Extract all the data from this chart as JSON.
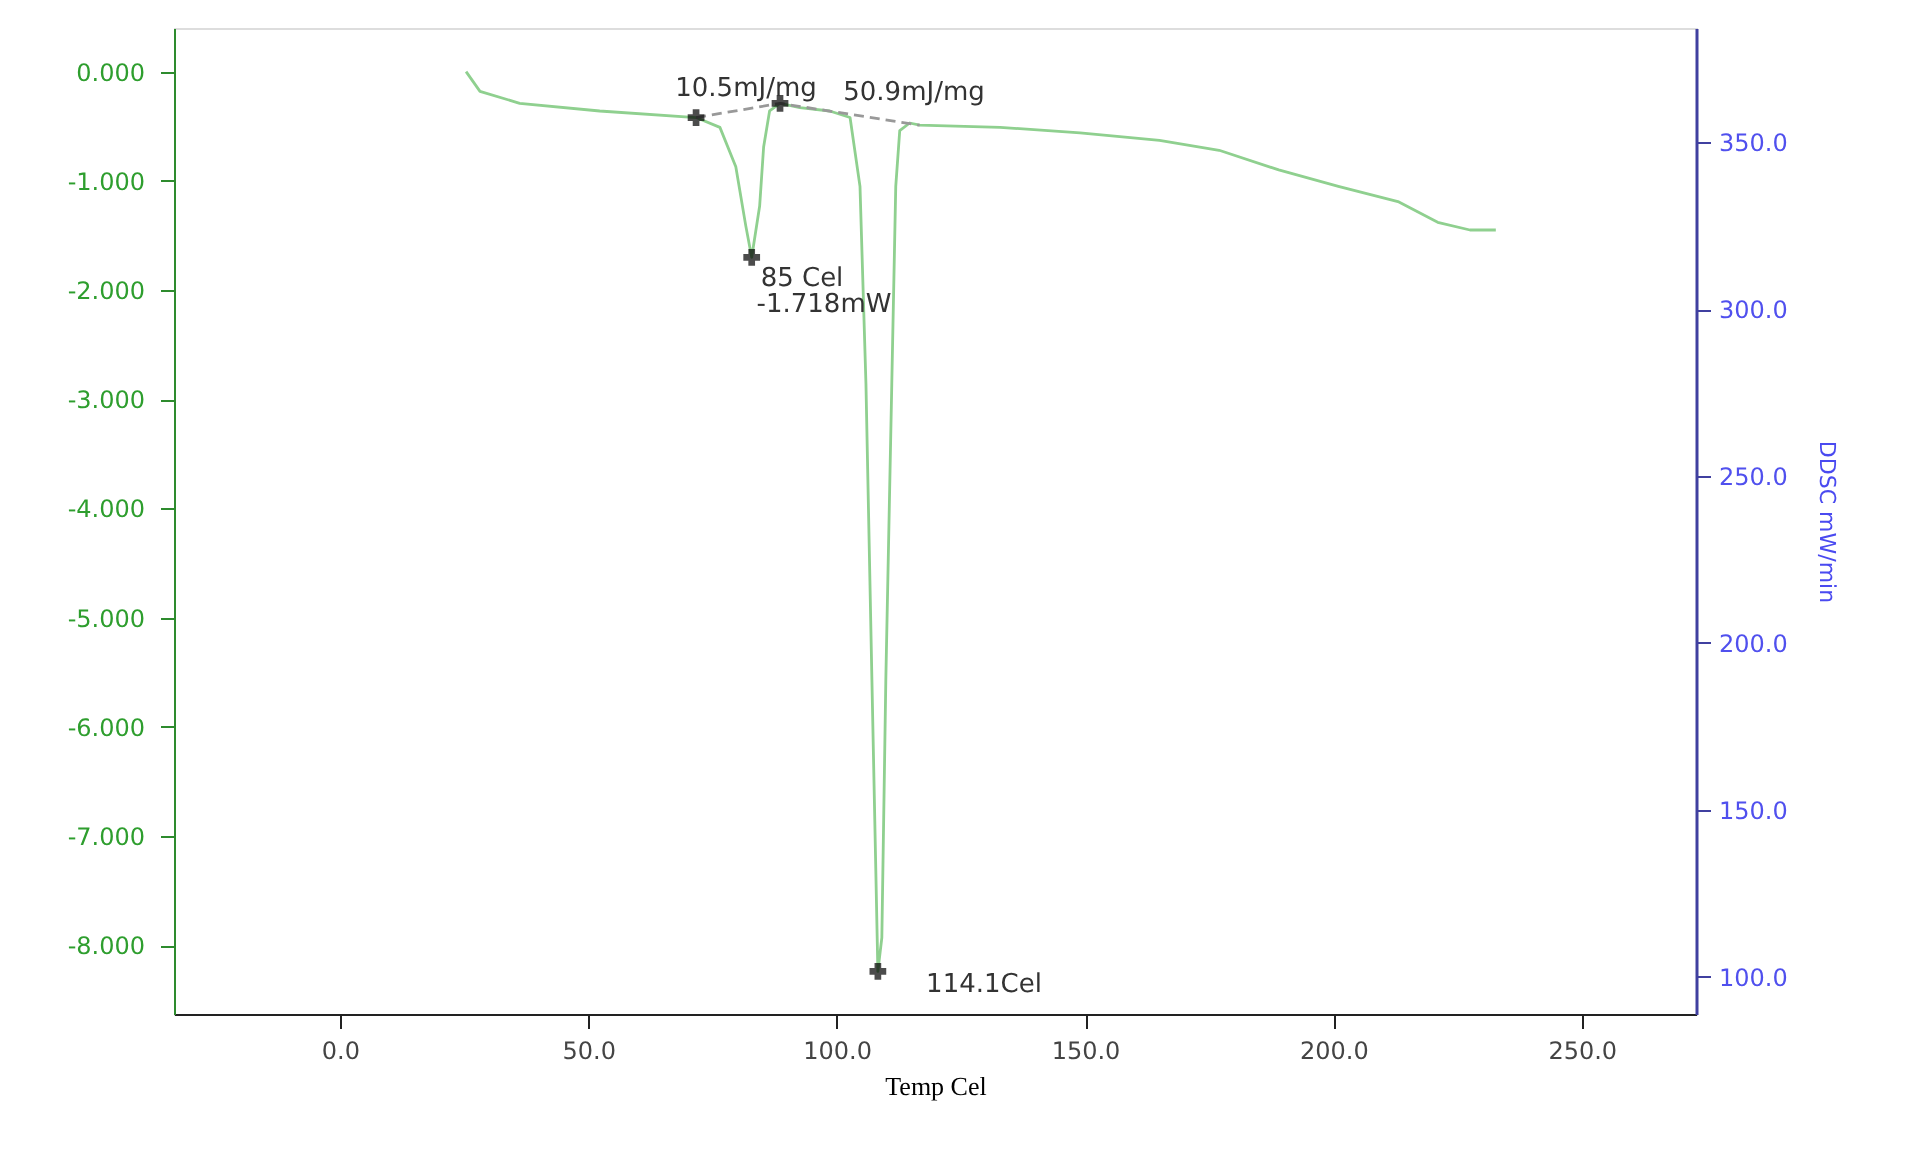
{
  "chart_data": {
    "type": "line",
    "xlabel": "Temp Cel",
    "y2label": "DDSC mW/min",
    "xlim": [
      -33.4,
      273
    ],
    "xticks": [
      {
        "value": 0,
        "label": "0.0"
      },
      {
        "value": 50,
        "label": "50.0"
      },
      {
        "value": 100,
        "label": "100.0"
      },
      {
        "value": 150,
        "label": "150.0"
      },
      {
        "value": 200,
        "label": "200.0"
      },
      {
        "value": 250,
        "label": "250.0"
      }
    ],
    "ylim": [
      -8.63,
      0.4
    ],
    "yticks": [
      {
        "value": 0,
        "label": "0.000"
      },
      {
        "value": -1,
        "label": "-1.000"
      },
      {
        "value": -2,
        "label": "-2.000"
      },
      {
        "value": -3,
        "label": "-3.000"
      },
      {
        "value": -4,
        "label": "-4.000"
      },
      {
        "value": -5,
        "label": "-5.000"
      },
      {
        "value": -6,
        "label": "-6.000"
      },
      {
        "value": -7,
        "label": "-7.000"
      },
      {
        "value": -8,
        "label": "-8.000"
      }
    ],
    "y2lim": [
      88.8,
      384.2
    ],
    "y2ticks": [
      {
        "value": 100,
        "label": "100.0"
      },
      {
        "value": 150,
        "label": "150.0"
      },
      {
        "value": 200,
        "label": "200.0"
      },
      {
        "value": 250,
        "label": "250.0"
      },
      {
        "value": 300,
        "label": "300.0"
      },
      {
        "value": 350,
        "label": "350.0"
      }
    ],
    "grid": false,
    "series": [
      {
        "color": "#8fd08f",
        "line_style": "solid",
        "x": [
          25.4,
          28.2,
          36.2,
          52.3,
          71.7,
          76.5,
          79.7,
          81.7,
          82.9,
          84.5,
          85.3,
          86.5,
          88.6,
          92.6,
          98.6,
          102.7,
          104.7,
          105.9,
          107.1,
          108.3,
          109.1,
          109.9,
          111.1,
          111.9,
          112.7,
          114.7,
          116.7,
          132.9,
          149,
          165,
          177,
          189,
          201,
          213,
          221,
          227.5,
          232.7
        ],
        "values": [
          0.0,
          -0.18,
          -0.29,
          -0.36,
          -0.42,
          -0.51,
          -0.87,
          -1.41,
          -1.7,
          -1.23,
          -0.69,
          -0.36,
          -0.29,
          -0.33,
          -0.36,
          -0.42,
          -1.05,
          -2.86,
          -5.57,
          -8.24,
          -7.93,
          -5.57,
          -2.86,
          -1.05,
          -0.54,
          -0.47,
          -0.49,
          -0.51,
          -0.56,
          -0.63,
          -0.72,
          -0.9,
          -1.05,
          -1.19,
          -1.38,
          -1.45,
          -1.45
        ]
      },
      {
        "type": "line",
        "color": "#999999",
        "line_style": "dashed",
        "x": [
          71.7,
          88.6,
          116.7
        ],
        "values": [
          -0.42,
          -0.29,
          -0.49
        ]
      },
      {
        "type": "scatter",
        "color": "#000000",
        "marker": "cross",
        "x": [
          71.7,
          82.9,
          88.6,
          108.3
        ],
        "values": [
          -0.42,
          -1.7,
          -0.29,
          -8.24
        ]
      }
    ],
    "annotations": [
      "10.5mJ/mg",
      "50.9mJ/mg",
      "85 Cel",
      "-1.718mW",
      "114.1Cel"
    ]
  }
}
